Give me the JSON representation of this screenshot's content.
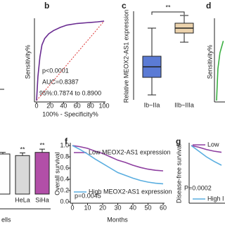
{
  "chart_data": [
    {
      "type": "line",
      "panel_label": "b",
      "xlabel": "100% - Specificity%",
      "ylabel": "Sensitivity%",
      "xlim": [
        0,
        100
      ],
      "ylim": [
        0,
        100
      ],
      "xticks": [
        0,
        20,
        40,
        60,
        80,
        100
      ],
      "x": [
        0,
        2,
        5,
        8,
        12,
        18,
        25,
        35,
        45,
        60,
        75,
        90,
        100
      ],
      "values": [
        0,
        30,
        55,
        70,
        78,
        84,
        88,
        92,
        95,
        97,
        98,
        99,
        100
      ],
      "color": "#6a2c91",
      "annotations": [
        "p<0.0001",
        "AUC=0.8387",
        "95%:0.7874 to 0.8900"
      ]
    },
    {
      "type": "box",
      "panel_label": "c",
      "ylabel": "Relative MEOX2-AS1 expression",
      "categories": [
        "Ib~IIa",
        "IIb~IIIa"
      ],
      "ylim": [
        0,
        12
      ],
      "boxes": [
        {
          "low": 0.5,
          "q1": 3,
          "median": 4.5,
          "q3": 6,
          "high": 10
        },
        {
          "low": 8,
          "q1": 9.3,
          "median": 10,
          "q3": 10.7,
          "high": 11.8
        }
      ],
      "colors": [
        "#5b7bd5",
        "#ecd3ad"
      ],
      "annotations": [
        "**"
      ]
    },
    {
      "type": "line",
      "panel_label": "d",
      "ylabel": "Sensitivity%",
      "xlim": [
        0,
        100
      ],
      "ylim": [
        0,
        100
      ],
      "x": [
        0,
        2,
        5,
        10
      ],
      "values": [
        0,
        40,
        60,
        75
      ],
      "color": "#3cb043"
    },
    {
      "type": "bar",
      "xlabel": "ells",
      "categories": [
        null,
        "HeLa",
        "SiHa"
      ],
      "ylim": [
        0,
        10
      ],
      "values": [
        7.5,
        7.2,
        7.8
      ],
      "errors": [
        0.3,
        0.5,
        0.6
      ],
      "colors": [
        "#ffffff",
        "#d9d9d9",
        "#b24fa8"
      ],
      "annotations": [
        "**",
        "**"
      ]
    },
    {
      "type": "line",
      "panel_label": "f",
      "xlabel": "Months",
      "ylabel": "Overall survival",
      "xlim": [
        0,
        60
      ],
      "ylim": [
        0,
        1
      ],
      "xticks": [
        0,
        10,
        20,
        30,
        40,
        50,
        60
      ],
      "yticks": [
        {
          "value": 0,
          "label": "0.0"
        },
        {
          "value": 0.2,
          "label": "0.2"
        },
        {
          "value": 0.4,
          "label": "0.4"
        },
        {
          "value": 0.6,
          "label": "0.6"
        },
        {
          "value": 0.8,
          "label": "0.8"
        },
        {
          "value": 1,
          "label": "1.0"
        }
      ],
      "x": [
        0,
        5,
        10,
        15,
        20,
        25,
        30,
        35,
        40,
        45,
        50,
        55,
        60
      ],
      "series": [
        {
          "name": "Low MEOX2-AS1 expression",
          "color": "#8e3fa0",
          "values": [
            1,
            0.98,
            0.95,
            0.9,
            0.86,
            0.8,
            0.74,
            0.7,
            0.65,
            0.61,
            0.58,
            0.56,
            0.55
          ]
        },
        {
          "name": "High MEOX2-AS1 expression",
          "color": "#5aaee0",
          "values": [
            1,
            0.93,
            0.85,
            0.76,
            0.68,
            0.6,
            0.52,
            0.47,
            0.42,
            0.38,
            0.35,
            0.33,
            0.32
          ]
        }
      ],
      "annotations": [
        "p=0.0045"
      ]
    },
    {
      "type": "line",
      "panel_label": "g",
      "ylabel": "Disease-free survival",
      "xlim": [
        0,
        60
      ],
      "ylim": [
        0,
        1
      ],
      "x": [
        0,
        5,
        10,
        15,
        20
      ],
      "series": [
        {
          "name": "Low",
          "color": "#8e3fa0",
          "values": [
            1,
            0.97,
            0.93,
            0.9,
            0.88
          ]
        },
        {
          "name": "High I",
          "color": "#5aaee0",
          "values": [
            1,
            0.9,
            0.8,
            0.72,
            0.65
          ]
        }
      ],
      "annotations": [
        "P=0.0002"
      ]
    }
  ]
}
